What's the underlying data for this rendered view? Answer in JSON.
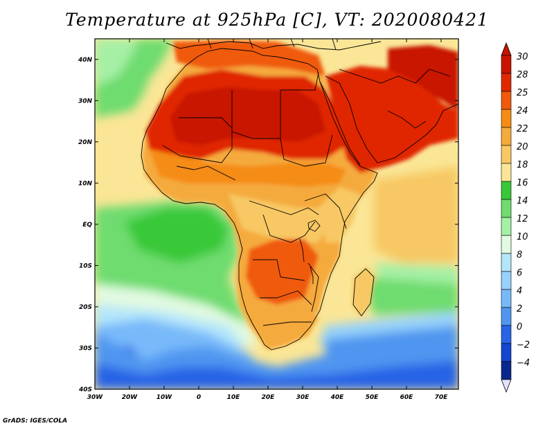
{
  "title": "Temperature at 925hPa [C], VT: 2020080421",
  "credit": "GrADS: IGES/COLA",
  "map": {
    "lon_range": [
      -30,
      75
    ],
    "lat_range": [
      -40,
      45
    ],
    "lat_ticks": [
      {
        "value": 40,
        "label": "40N"
      },
      {
        "value": 30,
        "label": "30N"
      },
      {
        "value": 20,
        "label": "20N"
      },
      {
        "value": 10,
        "label": "10N"
      },
      {
        "value": 0,
        "label": "EQ"
      },
      {
        "value": -10,
        "label": "10S"
      },
      {
        "value": -20,
        "label": "20S"
      },
      {
        "value": -30,
        "label": "30S"
      },
      {
        "value": -40,
        "label": "40S"
      }
    ],
    "lon_ticks": [
      {
        "value": -30,
        "label": "30W"
      },
      {
        "value": -20,
        "label": "20W"
      },
      {
        "value": -10,
        "label": "10W"
      },
      {
        "value": 0,
        "label": "0"
      },
      {
        "value": 10,
        "label": "10E"
      },
      {
        "value": 20,
        "label": "20E"
      },
      {
        "value": 30,
        "label": "30E"
      },
      {
        "value": 40,
        "label": "40E"
      },
      {
        "value": 50,
        "label": "50E"
      },
      {
        "value": 60,
        "label": "60E"
      },
      {
        "value": 70,
        "label": "70E"
      }
    ]
  },
  "colorbar": {
    "levels": [
      {
        "label": "30",
        "color": "#c81400"
      },
      {
        "label": "28",
        "color": "#e02800"
      },
      {
        "label": "25",
        "color": "#f05a0a"
      },
      {
        "label": "24",
        "color": "#f58c14"
      },
      {
        "label": "22",
        "color": "#f5aa3c"
      },
      {
        "label": "20",
        "color": "#f7c864"
      },
      {
        "label": "18",
        "color": "#fae696"
      },
      {
        "label": "16",
        "color": "#37c837"
      },
      {
        "label": "14",
        "color": "#6edc6e"
      },
      {
        "label": "12",
        "color": "#a5f0a5"
      },
      {
        "label": "10",
        "color": "#e1fae1"
      },
      {
        "label": "8",
        "color": "#b4e6fa"
      },
      {
        "label": "6",
        "color": "#96d2fa"
      },
      {
        "label": "4",
        "color": "#78b9fa"
      },
      {
        "label": "2",
        "color": "#5096f0"
      },
      {
        "label": "0",
        "color": "#2864e6"
      },
      {
        "label": "−2",
        "color": "#1446d2"
      },
      {
        "label": "−4",
        "color": "#0a288c"
      }
    ],
    "bottom_color": "#e1e1fa"
  }
}
